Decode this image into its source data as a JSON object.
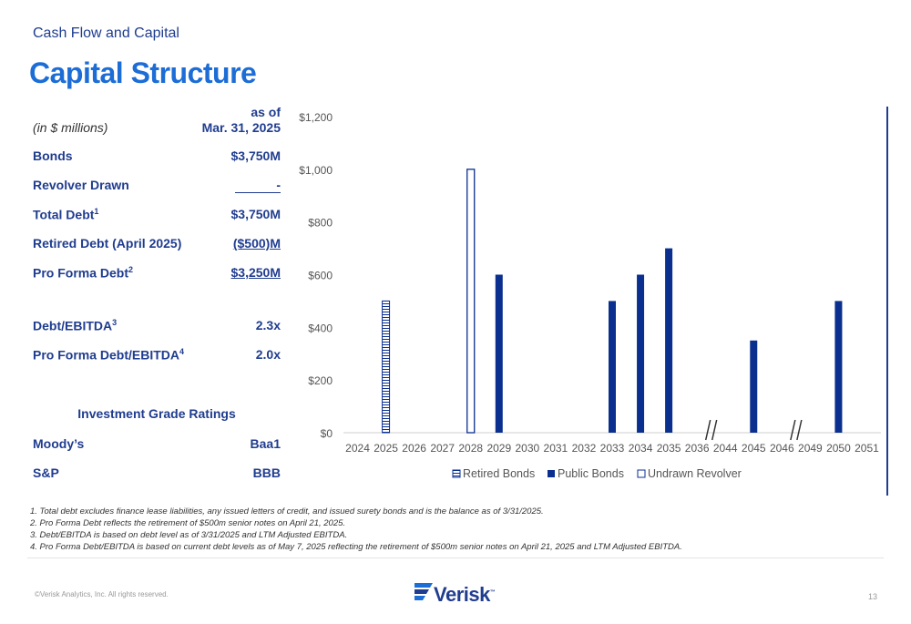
{
  "header": {
    "section": "Cash Flow and Capital",
    "title": "Capital Structure"
  },
  "table": {
    "units": "(in $ millions)",
    "as_of_line1": "as of",
    "as_of_line2": "Mar. 31, 2025",
    "rows": [
      {
        "label": "Bonds",
        "sup": "",
        "value": "$3,750M"
      },
      {
        "label": "Revolver Drawn",
        "sup": "",
        "value": "-"
      },
      {
        "label": "Total Debt",
        "sup": "1",
        "value": "$3,750M"
      },
      {
        "label": "Retired Debt (April 2025)",
        "sup": "",
        "value": "($500)M"
      },
      {
        "label": "Pro Forma Debt",
        "sup": "2",
        "value": "$3,250M"
      },
      {
        "label": "Debt/EBITDA",
        "sup": "3",
        "value": "2.3x"
      },
      {
        "label": "Pro Forma Debt/EBITDA",
        "sup": "4",
        "value": "2.0x"
      }
    ],
    "ratings_title": "Investment Grade Ratings",
    "ratings": [
      {
        "label": "Moody’s",
        "value": "Baa1"
      },
      {
        "label": "S&P",
        "value": "BBB"
      }
    ]
  },
  "chart_data": {
    "type": "bar",
    "categories": [
      "2024",
      "2025",
      "2026",
      "2027",
      "2028",
      "2029",
      "2030",
      "2031",
      "2032",
      "2033",
      "2034",
      "2035",
      "2036",
      "2044",
      "2045",
      "2046",
      "2049",
      "2050",
      "2051"
    ],
    "series": [
      {
        "name": "Retired Bonds",
        "values": [
          0,
          500,
          0,
          0,
          0,
          0,
          0,
          0,
          0,
          0,
          0,
          0,
          0,
          0,
          0,
          0,
          0,
          0,
          0
        ]
      },
      {
        "name": "Public Bonds",
        "values": [
          0,
          0,
          0,
          0,
          0,
          600,
          0,
          0,
          0,
          500,
          600,
          700,
          0,
          0,
          350,
          0,
          0,
          500,
          0
        ]
      },
      {
        "name": "Undrawn Revolver",
        "values": [
          0,
          0,
          0,
          0,
          1000,
          0,
          0,
          0,
          0,
          0,
          0,
          0,
          0,
          0,
          0,
          0,
          0,
          0,
          0
        ]
      }
    ],
    "y_ticks": [
      "$0",
      "$200",
      "$400",
      "$600",
      "$800",
      "$1,000",
      "$1,200"
    ],
    "ylim": [
      0,
      1200
    ],
    "axis_breaks_after": [
      "2036",
      "2046"
    ],
    "legend_position": "bottom",
    "colors": {
      "public": "#0a2f8f",
      "retired": "#0a2f8f",
      "undrawn": "#0a2f8f"
    }
  },
  "footnotes": [
    "1. Total debt excludes finance lease liabilities, any issued letters of credit, and issued surety bonds and is the balance as of 3/31/2025.",
    "2. Pro Forma Debt reflects the retirement of $500m senior notes on April 21, 2025.",
    "3. Debt/EBITDA is based on debt level as of 3/31/2025 and LTM Adjusted EBITDA.",
    "4. Pro Forma Debt/EBITDA is based on current debt levels as of May 7, 2025 reflecting the retirement of $500m senior notes on April 21, 2025 and LTM Adjusted EBITDA."
  ],
  "footer": {
    "copyright": "©Verisk Analytics, Inc. All rights reserved.",
    "page": "13",
    "logo": "Verisk",
    "logo_mark": "™"
  }
}
